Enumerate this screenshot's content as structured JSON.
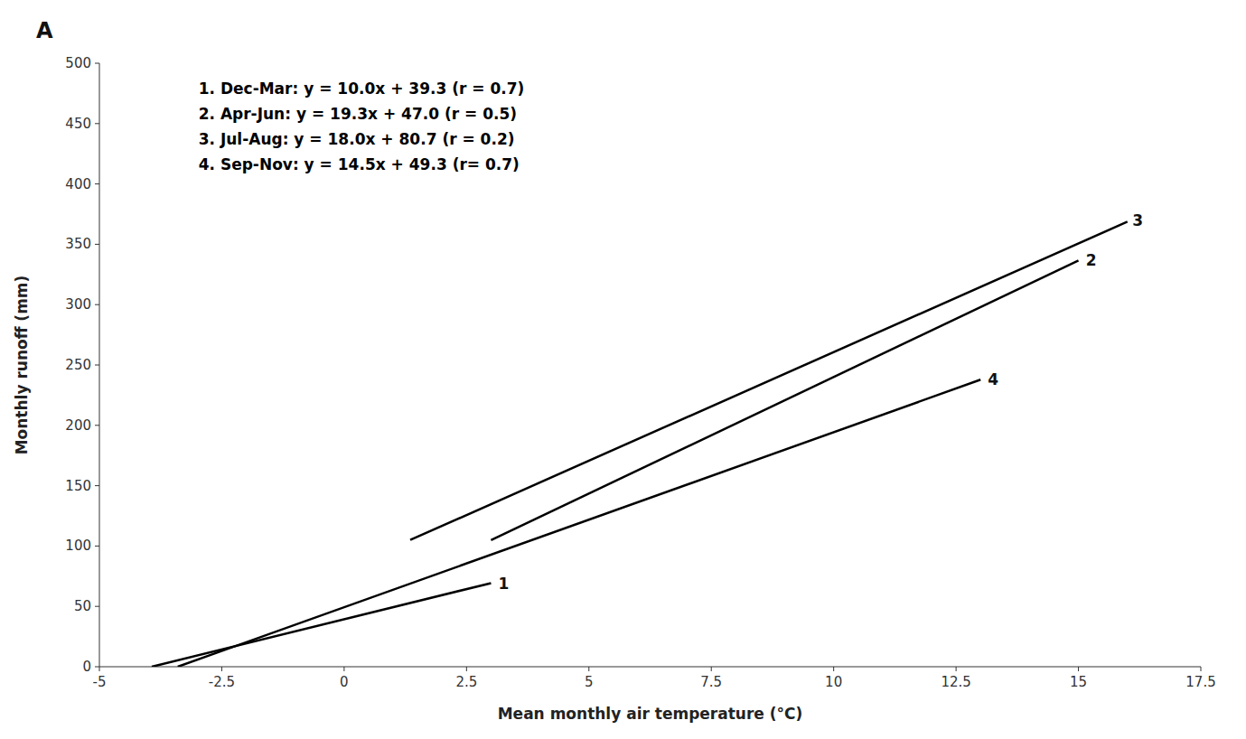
{
  "chart_data": {
    "type": "line",
    "title": "A",
    "x_label": "Mean monthly air temperature (°C)",
    "y_label": "Monthly runoff (mm)",
    "xlim": [
      -5,
      17.5
    ],
    "ylim": [
      0,
      500
    ],
    "xticks": [
      -5,
      -2.5,
      0,
      2.5,
      5,
      7.5,
      10,
      12.5,
      15,
      17.5
    ],
    "yticks": [
      0,
      50,
      100,
      150,
      200,
      250,
      300,
      350,
      400,
      450,
      500
    ],
    "grid": false,
    "legend": "upper left",
    "series": [
      {
        "name": "1. Dec-Mar: y = 10.0x + 39.3 (r = 0.7)",
        "color": "#000000",
        "x": [
          -3.93,
          3.0
        ],
        "values": [
          0,
          69.3
        ]
      },
      {
        "name": "2. Apr-Jun: y = 19.3x + 47.0 (r = 0.5)",
        "color": "#000000",
        "x": [
          3.0,
          15.0
        ],
        "values": [
          104.9,
          336.5
        ]
      },
      {
        "name": "3. Jul-Aug: y = 18.0x + 80.7 (r = 0.2)",
        "color": "#000000",
        "x": [
          1.35,
          16.0
        ],
        "values": [
          105.0,
          368.7
        ]
      },
      {
        "name": "4. Sep-Nov: y = 14.5x + 49.3 (r= 0.7)",
        "color": "#000000",
        "x": [
          -3.4,
          13.0
        ],
        "values": [
          0,
          237.8
        ]
      }
    ],
    "annotations": [
      {
        "text": "1",
        "x": 3.15,
        "y": 68
      },
      {
        "text": "2",
        "x": 15.15,
        "y": 336
      },
      {
        "text": "3",
        "x": 16.1,
        "y": 369
      },
      {
        "text": "4",
        "x": 13.15,
        "y": 237
      }
    ]
  }
}
